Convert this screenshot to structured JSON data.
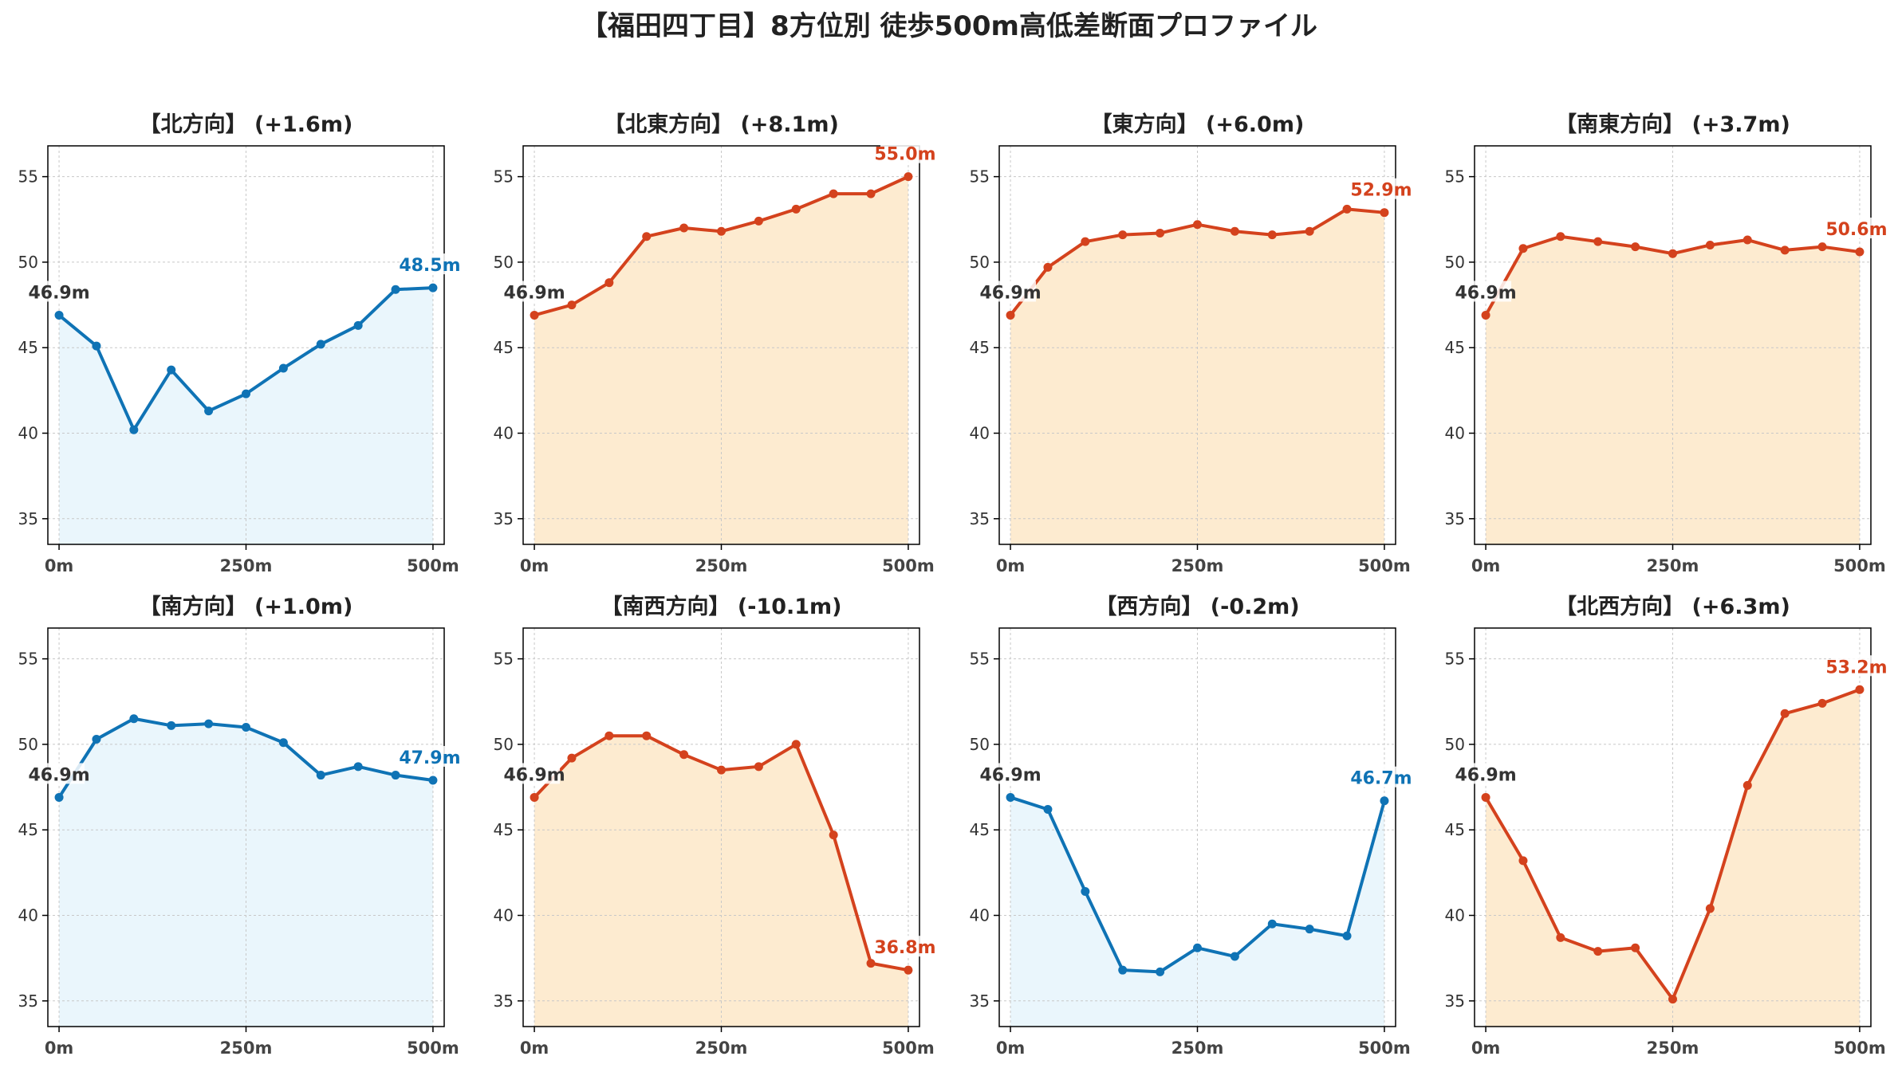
{
  "title": "【福田四丁目】8方位別 徒歩500m高低差断面プロファイル",
  "colors": {
    "up_line": "#d4421d",
    "up_fill": "#fdebd0",
    "down_line": "#0f73b5",
    "down_fill": "#eaf6fc",
    "start_label": "#333333",
    "grid": "#c8c8c8"
  },
  "chart_data": [
    {
      "type": "area",
      "title": "【北方向】 (+1.6m)",
      "trend": "down",
      "x": [
        0,
        50,
        100,
        150,
        200,
        250,
        300,
        350,
        400,
        450,
        500
      ],
      "y": [
        46.9,
        45.1,
        40.2,
        43.7,
        41.3,
        42.3,
        43.8,
        45.2,
        46.3,
        48.4,
        48.5
      ],
      "xticks": [
        "0m",
        "250m",
        "500m"
      ],
      "yticks": [
        35,
        40,
        45,
        50,
        55
      ],
      "xlim": [
        -15,
        515
      ],
      "ylim": [
        33.5,
        56.8
      ],
      "start_label": "46.9m",
      "end_label": "48.5m",
      "grid": true
    },
    {
      "type": "area",
      "title": "【北東方向】 (+8.1m)",
      "trend": "up",
      "x": [
        0,
        50,
        100,
        150,
        200,
        250,
        300,
        350,
        400,
        450,
        500
      ],
      "y": [
        46.9,
        47.5,
        48.8,
        51.5,
        52.0,
        51.8,
        52.4,
        53.1,
        54.0,
        54.0,
        55.0
      ],
      "xticks": [
        "0m",
        "250m",
        "500m"
      ],
      "yticks": [
        35,
        40,
        45,
        50,
        55
      ],
      "xlim": [
        -15,
        515
      ],
      "ylim": [
        33.5,
        56.8
      ],
      "start_label": "46.9m",
      "end_label": "55.0m",
      "grid": true
    },
    {
      "type": "area",
      "title": "【東方向】 (+6.0m)",
      "trend": "up",
      "x": [
        0,
        50,
        100,
        150,
        200,
        250,
        300,
        350,
        400,
        450,
        500
      ],
      "y": [
        46.9,
        49.7,
        51.2,
        51.6,
        51.7,
        52.2,
        51.8,
        51.6,
        51.8,
        53.1,
        52.9
      ],
      "xticks": [
        "0m",
        "250m",
        "500m"
      ],
      "yticks": [
        35,
        40,
        45,
        50,
        55
      ],
      "xlim": [
        -15,
        515
      ],
      "ylim": [
        33.5,
        56.8
      ],
      "start_label": "46.9m",
      "end_label": "52.9m",
      "grid": true
    },
    {
      "type": "area",
      "title": "【南東方向】 (+3.7m)",
      "trend": "up",
      "x": [
        0,
        50,
        100,
        150,
        200,
        250,
        300,
        350,
        400,
        450,
        500
      ],
      "y": [
        46.9,
        50.8,
        51.5,
        51.2,
        50.9,
        50.5,
        51.0,
        51.3,
        50.7,
        50.9,
        50.6
      ],
      "xticks": [
        "0m",
        "250m",
        "500m"
      ],
      "yticks": [
        35,
        40,
        45,
        50,
        55
      ],
      "xlim": [
        -15,
        515
      ],
      "ylim": [
        33.5,
        56.8
      ],
      "start_label": "46.9m",
      "end_label": "50.6m",
      "grid": true
    },
    {
      "type": "area",
      "title": "【南方向】 (+1.0m)",
      "trend": "down",
      "x": [
        0,
        50,
        100,
        150,
        200,
        250,
        300,
        350,
        400,
        450,
        500
      ],
      "y": [
        46.9,
        50.3,
        51.5,
        51.1,
        51.2,
        51.0,
        50.1,
        48.2,
        48.7,
        48.2,
        47.9
      ],
      "xticks": [
        "0m",
        "250m",
        "500m"
      ],
      "yticks": [
        35,
        40,
        45,
        50,
        55
      ],
      "xlim": [
        -15,
        515
      ],
      "ylim": [
        33.5,
        56.8
      ],
      "start_label": "46.9m",
      "end_label": "47.9m",
      "grid": true
    },
    {
      "type": "area",
      "title": "【南西方向】 (-10.1m)",
      "trend": "up",
      "x": [
        0,
        50,
        100,
        150,
        200,
        250,
        300,
        350,
        400,
        450,
        500
      ],
      "y": [
        46.9,
        49.2,
        50.5,
        50.5,
        49.4,
        48.5,
        48.7,
        50.0,
        44.7,
        37.2,
        36.8
      ],
      "xticks": [
        "0m",
        "250m",
        "500m"
      ],
      "yticks": [
        35,
        40,
        45,
        50,
        55
      ],
      "xlim": [
        -15,
        515
      ],
      "ylim": [
        33.5,
        56.8
      ],
      "start_label": "46.9m",
      "end_label": "36.8m",
      "grid": true
    },
    {
      "type": "area",
      "title": "【西方向】 (-0.2m)",
      "trend": "down",
      "x": [
        0,
        50,
        100,
        150,
        200,
        250,
        300,
        350,
        400,
        450,
        500
      ],
      "y": [
        46.9,
        46.2,
        41.4,
        36.8,
        36.7,
        38.1,
        37.6,
        39.5,
        39.2,
        38.8,
        46.7
      ],
      "xticks": [
        "0m",
        "250m",
        "500m"
      ],
      "yticks": [
        35,
        40,
        45,
        50,
        55
      ],
      "xlim": [
        -15,
        515
      ],
      "ylim": [
        33.5,
        56.8
      ],
      "start_label": "46.9m",
      "end_label": "46.7m",
      "grid": true
    },
    {
      "type": "area",
      "title": "【北西方向】 (+6.3m)",
      "trend": "up",
      "x": [
        0,
        50,
        100,
        150,
        200,
        250,
        300,
        350,
        400,
        450,
        500
      ],
      "y": [
        46.9,
        43.2,
        38.7,
        37.9,
        38.1,
        35.1,
        40.4,
        47.6,
        51.8,
        52.4,
        53.2
      ],
      "xticks": [
        "0m",
        "250m",
        "500m"
      ],
      "yticks": [
        35,
        40,
        45,
        50,
        55
      ],
      "xlim": [
        -15,
        515
      ],
      "ylim": [
        33.5,
        56.8
      ],
      "start_label": "46.9m",
      "end_label": "53.2m",
      "grid": true
    }
  ]
}
